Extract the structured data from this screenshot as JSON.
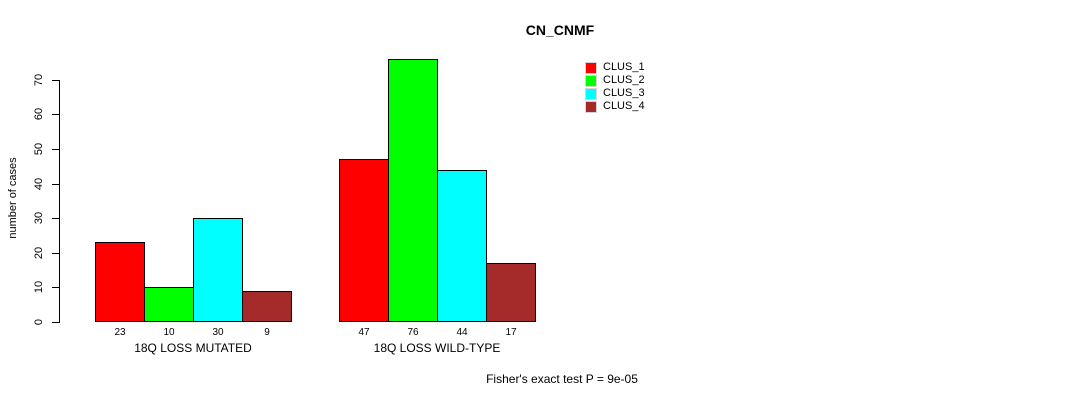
{
  "chart_data": {
    "type": "bar",
    "title": "CN_CNMF",
    "ylabel": "number of cases",
    "xlabel": "",
    "annotation": "Fisher's exact test P = 9e-05",
    "categories": [
      "18Q LOSS MUTATED",
      "18Q LOSS WILD-TYPE"
    ],
    "series": [
      {
        "name": "CLUS_1",
        "color": "#ff0000",
        "values": [
          23,
          47
        ]
      },
      {
        "name": "CLUS_2",
        "color": "#00ff00",
        "values": [
          10,
          76
        ]
      },
      {
        "name": "CLUS_3",
        "color": "#00ffff",
        "values": [
          30,
          44
        ]
      },
      {
        "name": "CLUS_4",
        "color": "#a52a2a",
        "values": [
          9,
          17
        ]
      }
    ],
    "yticks": [
      0,
      10,
      20,
      30,
      40,
      50,
      60,
      70
    ],
    "ylim": [
      0,
      76
    ],
    "bar_value_labels": [
      [
        23,
        10,
        30,
        9
      ],
      [
        47,
        76,
        44,
        17
      ]
    ],
    "legend_position": "top-right",
    "grid": false,
    "background": "#ffffff",
    "axis_color": "#000000"
  }
}
